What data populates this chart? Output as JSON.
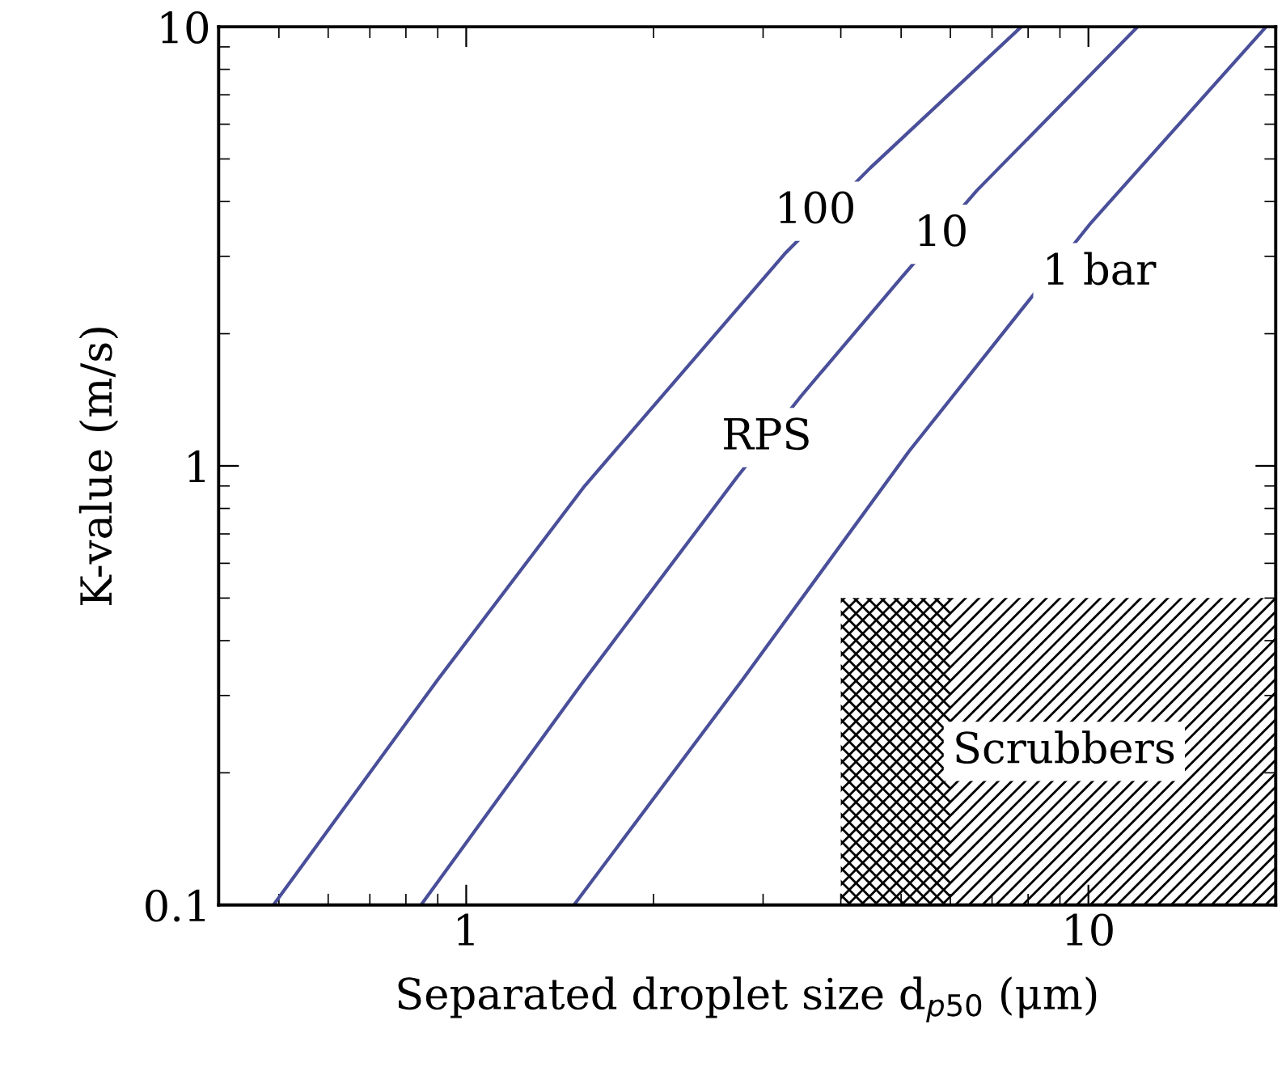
{
  "chart_data": {
    "type": "line",
    "xlabel": "Separated droplet size d$_{p50}$ (μm)",
    "ylabel": "K-value (m/s)",
    "log": "xy",
    "xlim": [
      0.4,
      20
    ],
    "ylim": [
      0.1,
      10
    ],
    "xticks": [
      1,
      10
    ],
    "yticks": [
      0.1,
      1,
      10
    ],
    "grid": false,
    "legend": false,
    "series": [
      {
        "color": "#4a4f9a",
        "x": [
          0.49,
          0.9,
          1.55,
          3.25,
          4.46,
          7.8
        ],
        "values": [
          0.1,
          0.326,
          0.9,
          3.04,
          4.77,
          10
        ]
      },
      {
        "color": "#4a4f9a",
        "x": [
          0.846,
          1.55,
          2.72,
          3.45,
          5.0,
          6.62,
          12
        ],
        "values": [
          0.1,
          0.326,
          0.94,
          1.44,
          2.68,
          4.24,
          10
        ]
      },
      {
        "color": "#4a4f9a",
        "x": [
          1.49,
          2.78,
          5.15,
          7.83,
          10.1,
          19.3
        ],
        "values": [
          0.1,
          0.326,
          1.08,
          2.28,
          3.58,
          10
        ]
      },
      {
        "type": "area",
        "color": "#000000",
        "x": [
          4,
          20
        ],
        "values": [
          0.5,
          0.5
        ]
      },
      {
        "type": "area",
        "color": "#000000",
        "x": [
          4,
          6
        ],
        "values": [
          0.5,
          0.5
        ]
      }
    ],
    "annotations": [
      {
        "text": "100",
        "x": 3.64,
        "y": 3.8
      },
      {
        "text": "10",
        "x": 5.8,
        "y": 3.37
      },
      "1 bar",
      {
        "text": "RPS",
        "x": 3.04,
        "y": 1.16
      },
      "Scrubbers"
    ]
  }
}
